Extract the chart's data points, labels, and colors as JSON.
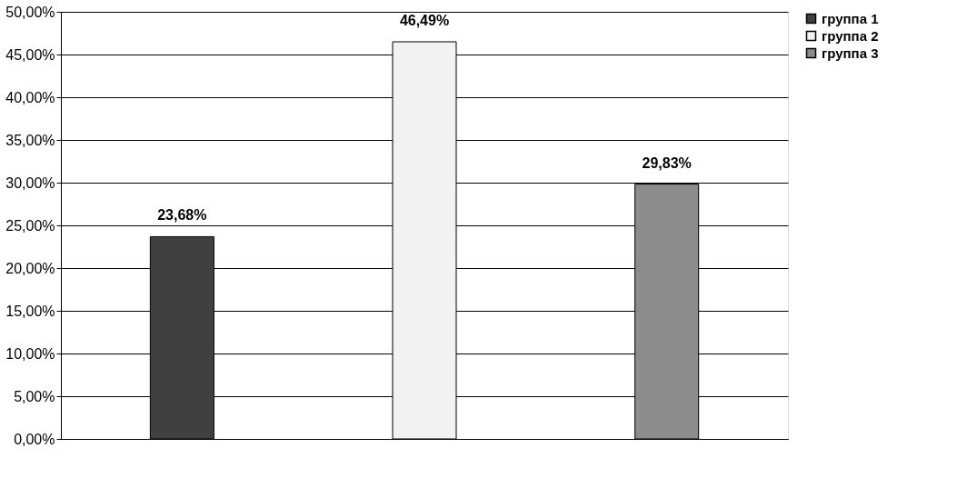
{
  "chart_data": {
    "type": "bar",
    "categories": [
      null,
      null,
      null
    ],
    "series": [
      {
        "name": "группа 1",
        "color": "#404040",
        "values": [
          23.68,
          null,
          null
        ],
        "value_labels": [
          "23,68%",
          null,
          null
        ]
      },
      {
        "name": "группа 2",
        "color": "#f2f2f2",
        "values": [
          null,
          46.49,
          null
        ],
        "value_labels": [
          null,
          "46,49%",
          null
        ]
      },
      {
        "name": "группа 3",
        "color": "#8c8c8c",
        "values": [
          null,
          null,
          29.83
        ],
        "value_labels": [
          null,
          null,
          "29,83%"
        ]
      }
    ],
    "ylim": [
      0,
      50
    ],
    "yticks": [
      {
        "value": 0,
        "label": "0,00%"
      },
      {
        "value": 5,
        "label": "5,00%"
      },
      {
        "value": 10,
        "label": "10,00%"
      },
      {
        "value": 15,
        "label": "15,00%"
      },
      {
        "value": 20,
        "label": "20,00%"
      },
      {
        "value": 25,
        "label": "25,00%"
      },
      {
        "value": 30,
        "label": "30,00%"
      },
      {
        "value": 35,
        "label": "35,00%"
      },
      {
        "value": 40,
        "label": "40,00%"
      },
      {
        "value": 45,
        "label": "45,00%"
      },
      {
        "value": 50,
        "label": "50,00%"
      }
    ],
    "grid": "y",
    "legend": "right"
  }
}
